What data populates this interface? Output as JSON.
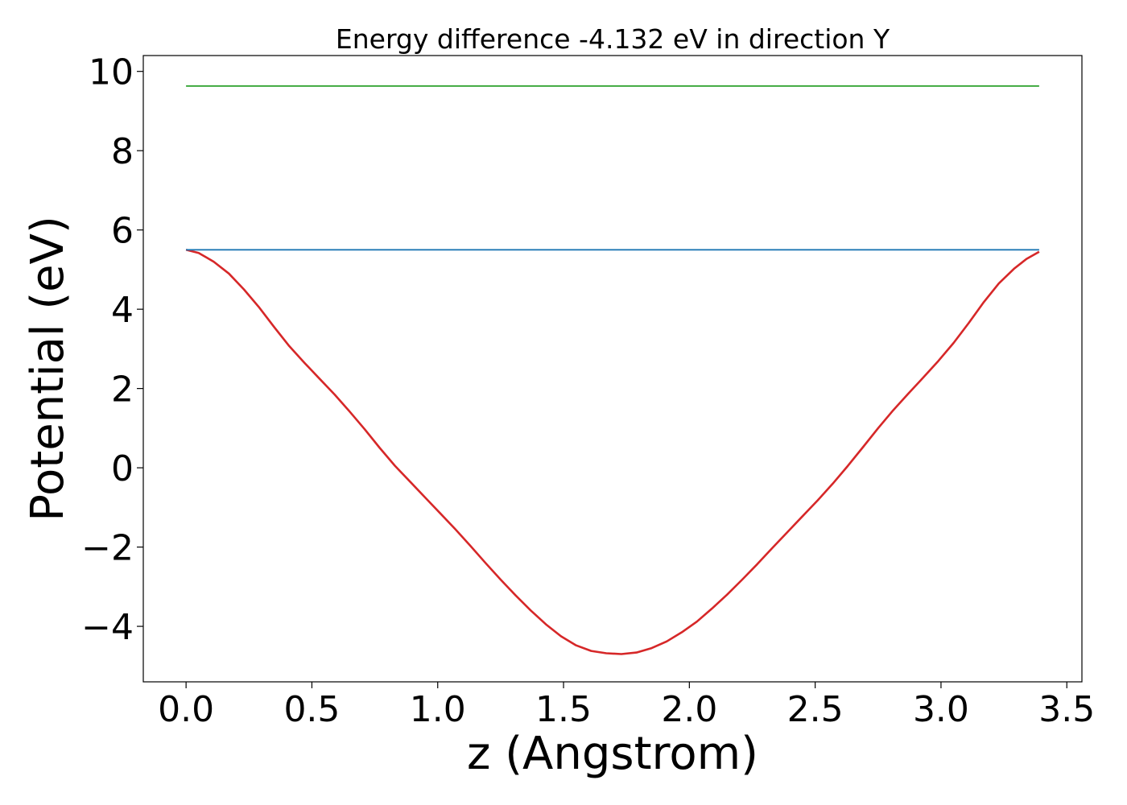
{
  "chart_data": {
    "type": "line",
    "title": "Energy difference -4.132 eV in direction Y",
    "xlabel": "z (Angstrom)",
    "ylabel": "Potential (eV)",
    "xlim": [
      -0.17,
      3.56
    ],
    "ylim": [
      -5.4,
      10.4
    ],
    "xticks": [
      0.0,
      0.5,
      1.0,
      1.5,
      2.0,
      2.5,
      3.0,
      3.5
    ],
    "xtick_labels": [
      "0.0",
      "0.5",
      "1.0",
      "1.5",
      "2.0",
      "2.5",
      "3.0",
      "3.5"
    ],
    "yticks": [
      -4,
      -2,
      0,
      2,
      4,
      6,
      8,
      10
    ],
    "ytick_labels": [
      "−4",
      "−2",
      "0",
      "2",
      "4",
      "6",
      "8",
      "10"
    ],
    "grid": false,
    "series": [
      {
        "color": "#d62728",
        "x": [
          0.0,
          0.05,
          0.11,
          0.17,
          0.23,
          0.29,
          0.35,
          0.41,
          0.47,
          0.53,
          0.59,
          0.65,
          0.71,
          0.77,
          0.83,
          0.89,
          0.95,
          1.01,
          1.07,
          1.13,
          1.19,
          1.25,
          1.31,
          1.37,
          1.43,
          1.49,
          1.55,
          1.61,
          1.67,
          1.73,
          1.79,
          1.85,
          1.91,
          1.97,
          2.03,
          2.09,
          2.15,
          2.21,
          2.27,
          2.33,
          2.39,
          2.45,
          2.51,
          2.57,
          2.63,
          2.69,
          2.75,
          2.81,
          2.87,
          2.93,
          2.99,
          3.05,
          3.11,
          3.17,
          3.23,
          3.29,
          3.34,
          3.39
        ],
        "y": [
          5.5,
          5.42,
          5.2,
          4.9,
          4.5,
          4.05,
          3.55,
          3.07,
          2.65,
          2.25,
          1.85,
          1.42,
          0.97,
          0.5,
          0.05,
          -0.35,
          -0.75,
          -1.15,
          -1.55,
          -1.97,
          -2.4,
          -2.82,
          -3.22,
          -3.6,
          -3.95,
          -4.25,
          -4.48,
          -4.62,
          -4.68,
          -4.7,
          -4.66,
          -4.55,
          -4.38,
          -4.15,
          -3.88,
          -3.55,
          -3.2,
          -2.82,
          -2.43,
          -2.02,
          -1.62,
          -1.22,
          -0.82,
          -0.4,
          0.05,
          0.52,
          1.0,
          1.45,
          1.87,
          2.28,
          2.7,
          3.15,
          3.65,
          4.18,
          4.65,
          5.02,
          5.27,
          5.45
        ]
      },
      {
        "color": "#1f77b4",
        "x": [
          0.0,
          3.39
        ],
        "y": [
          5.5,
          5.5
        ]
      },
      {
        "color": "#2ca02c",
        "x": [
          0.0,
          3.39
        ],
        "y": [
          9.63,
          9.63
        ]
      }
    ]
  }
}
